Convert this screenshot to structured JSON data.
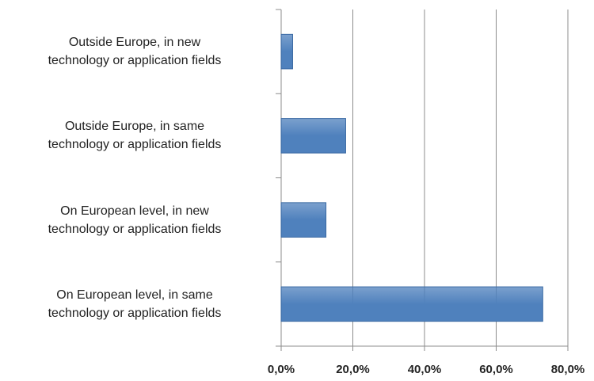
{
  "chart_data": {
    "type": "bar",
    "orientation": "horizontal",
    "categories": [
      "Outside Europe, in new\ntechnology or application fields",
      "Outside Europe, in same\ntechnology or application fields",
      "On European level, in new\ntechnology or application fields",
      "On European level, in same\ntechnology or application fields"
    ],
    "values": [
      3.2,
      18,
      12.5,
      73
    ],
    "color": "#4f81bd",
    "xlim": [
      0,
      80
    ],
    "xticks": [
      {
        "value": 0,
        "label": "0,0%"
      },
      {
        "value": 20,
        "label": "20,0%"
      },
      {
        "value": 40,
        "label": "40,0%"
      },
      {
        "value": 60,
        "label": "60,0%"
      },
      {
        "value": 80,
        "label": "80,0%"
      }
    ],
    "grid": true
  }
}
